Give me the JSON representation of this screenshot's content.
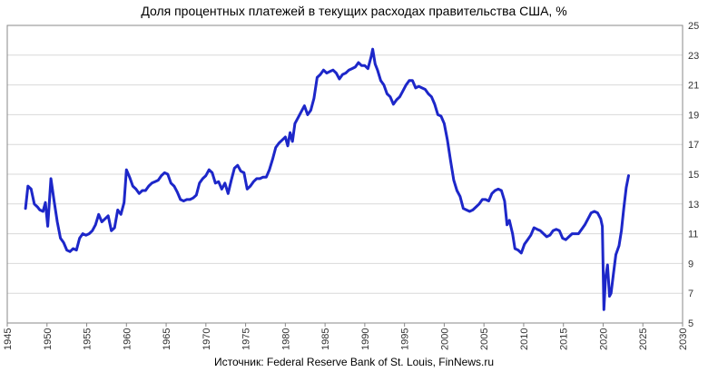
{
  "chart_data": {
    "type": "line",
    "title": "Доля процентных платежей в текущих расходах правительства США, %",
    "source": "Источник: Federal Reserve Bank of St. Louis, FinNews.ru",
    "xlim": [
      1945,
      2030
    ],
    "ylim": [
      5,
      25
    ],
    "x_ticks": [
      "1945",
      "1950",
      "1955",
      "1960",
      "1965",
      "1970",
      "1975",
      "1980",
      "1985",
      "1990",
      "1995",
      "2000",
      "2005",
      "2010",
      "2015",
      "2020",
      "2025",
      "2030"
    ],
    "y_ticks": [
      "5",
      "7",
      "9",
      "11",
      "13",
      "15",
      "17",
      "19",
      "21",
      "23",
      "25"
    ],
    "grid": true,
    "line_color": "#1d27c9",
    "series": [
      {
        "name": "",
        "points": [
          [
            1947.3,
            12.7
          ],
          [
            1947.6,
            14.2
          ],
          [
            1948.0,
            14.0
          ],
          [
            1948.4,
            13.0
          ],
          [
            1948.8,
            12.8
          ],
          [
            1949.1,
            12.6
          ],
          [
            1949.5,
            12.5
          ],
          [
            1949.8,
            13.1
          ],
          [
            1950.1,
            11.5
          ],
          [
            1950.5,
            14.7
          ],
          [
            1950.9,
            13.2
          ],
          [
            1951.3,
            11.8
          ],
          [
            1951.7,
            10.7
          ],
          [
            1952.1,
            10.4
          ],
          [
            1952.5,
            9.9
          ],
          [
            1952.9,
            9.8
          ],
          [
            1953.3,
            10.0
          ],
          [
            1953.7,
            9.9
          ],
          [
            1954.1,
            10.7
          ],
          [
            1954.5,
            11.0
          ],
          [
            1954.9,
            10.9
          ],
          [
            1955.3,
            11.0
          ],
          [
            1955.7,
            11.2
          ],
          [
            1956.1,
            11.6
          ],
          [
            1956.5,
            12.3
          ],
          [
            1956.9,
            11.8
          ],
          [
            1957.3,
            12.0
          ],
          [
            1957.7,
            12.2
          ],
          [
            1958.1,
            11.2
          ],
          [
            1958.5,
            11.4
          ],
          [
            1958.9,
            12.6
          ],
          [
            1959.3,
            12.3
          ],
          [
            1959.7,
            13.1
          ],
          [
            1960.0,
            15.3
          ],
          [
            1960.4,
            14.8
          ],
          [
            1960.8,
            14.2
          ],
          [
            1961.2,
            14.0
          ],
          [
            1961.6,
            13.7
          ],
          [
            1962.0,
            13.9
          ],
          [
            1962.4,
            13.9
          ],
          [
            1962.8,
            14.2
          ],
          [
            1963.2,
            14.4
          ],
          [
            1963.6,
            14.5
          ],
          [
            1964.0,
            14.6
          ],
          [
            1964.4,
            14.9
          ],
          [
            1964.8,
            15.1
          ],
          [
            1965.2,
            15.0
          ],
          [
            1965.6,
            14.4
          ],
          [
            1966.0,
            14.2
          ],
          [
            1966.4,
            13.8
          ],
          [
            1966.8,
            13.3
          ],
          [
            1967.2,
            13.2
          ],
          [
            1967.6,
            13.3
          ],
          [
            1968.0,
            13.3
          ],
          [
            1968.4,
            13.4
          ],
          [
            1968.8,
            13.6
          ],
          [
            1969.2,
            14.4
          ],
          [
            1969.6,
            14.7
          ],
          [
            1970.0,
            14.9
          ],
          [
            1970.4,
            15.3
          ],
          [
            1970.8,
            15.1
          ],
          [
            1971.2,
            14.4
          ],
          [
            1971.6,
            14.5
          ],
          [
            1972.0,
            14.0
          ],
          [
            1972.4,
            14.4
          ],
          [
            1972.8,
            13.7
          ],
          [
            1973.2,
            14.6
          ],
          [
            1973.6,
            15.4
          ],
          [
            1974.0,
            15.6
          ],
          [
            1974.4,
            15.2
          ],
          [
            1974.8,
            15.1
          ],
          [
            1975.2,
            14.0
          ],
          [
            1975.6,
            14.2
          ],
          [
            1976.0,
            14.5
          ],
          [
            1976.4,
            14.7
          ],
          [
            1976.8,
            14.7
          ],
          [
            1977.2,
            14.8
          ],
          [
            1977.6,
            14.8
          ],
          [
            1978.0,
            15.3
          ],
          [
            1978.4,
            16.0
          ],
          [
            1978.8,
            16.8
          ],
          [
            1979.2,
            17.1
          ],
          [
            1979.6,
            17.3
          ],
          [
            1980.0,
            17.5
          ],
          [
            1980.3,
            16.9
          ],
          [
            1980.6,
            17.8
          ],
          [
            1980.9,
            17.2
          ],
          [
            1981.2,
            18.4
          ],
          [
            1981.6,
            18.8
          ],
          [
            1982.0,
            19.2
          ],
          [
            1982.4,
            19.6
          ],
          [
            1982.8,
            19.0
          ],
          [
            1983.2,
            19.3
          ],
          [
            1983.6,
            20.1
          ],
          [
            1984.0,
            21.5
          ],
          [
            1984.4,
            21.7
          ],
          [
            1984.8,
            22.0
          ],
          [
            1985.2,
            21.8
          ],
          [
            1985.6,
            21.9
          ],
          [
            1986.0,
            22.0
          ],
          [
            1986.4,
            21.8
          ],
          [
            1986.8,
            21.4
          ],
          [
            1987.2,
            21.7
          ],
          [
            1987.6,
            21.8
          ],
          [
            1988.0,
            22.0
          ],
          [
            1988.4,
            22.1
          ],
          [
            1988.8,
            22.2
          ],
          [
            1989.2,
            22.5
          ],
          [
            1989.6,
            22.3
          ],
          [
            1990.0,
            22.3
          ],
          [
            1990.4,
            22.1
          ],
          [
            1990.8,
            22.9
          ],
          [
            1991.0,
            23.4
          ],
          [
            1991.3,
            22.4
          ],
          [
            1991.6,
            22.0
          ],
          [
            1992.0,
            21.3
          ],
          [
            1992.4,
            21.0
          ],
          [
            1992.8,
            20.4
          ],
          [
            1993.2,
            20.2
          ],
          [
            1993.6,
            19.7
          ],
          [
            1994.0,
            20.0
          ],
          [
            1994.4,
            20.2
          ],
          [
            1994.8,
            20.6
          ],
          [
            1995.2,
            21.0
          ],
          [
            1995.6,
            21.3
          ],
          [
            1996.0,
            21.3
          ],
          [
            1996.4,
            20.8
          ],
          [
            1996.8,
            20.9
          ],
          [
            1997.2,
            20.8
          ],
          [
            1997.6,
            20.7
          ],
          [
            1998.0,
            20.4
          ],
          [
            1998.4,
            20.2
          ],
          [
            1998.8,
            19.7
          ],
          [
            1999.2,
            19.0
          ],
          [
            1999.6,
            18.9
          ],
          [
            2000.0,
            18.4
          ],
          [
            2000.4,
            17.3
          ],
          [
            2000.8,
            15.9
          ],
          [
            2001.2,
            14.6
          ],
          [
            2001.6,
            13.9
          ],
          [
            2002.0,
            13.5
          ],
          [
            2002.4,
            12.7
          ],
          [
            2002.8,
            12.6
          ],
          [
            2003.2,
            12.5
          ],
          [
            2003.6,
            12.6
          ],
          [
            2004.0,
            12.8
          ],
          [
            2004.4,
            13.0
          ],
          [
            2004.8,
            13.3
          ],
          [
            2005.2,
            13.3
          ],
          [
            2005.6,
            13.2
          ],
          [
            2006.0,
            13.7
          ],
          [
            2006.4,
            13.9
          ],
          [
            2006.8,
            14.0
          ],
          [
            2007.2,
            13.9
          ],
          [
            2007.6,
            13.2
          ],
          [
            2007.9,
            11.6
          ],
          [
            2008.2,
            11.9
          ],
          [
            2008.6,
            11.0
          ],
          [
            2008.9,
            10.0
          ],
          [
            2009.3,
            9.9
          ],
          [
            2009.7,
            9.7
          ],
          [
            2010.1,
            10.3
          ],
          [
            2010.5,
            10.6
          ],
          [
            2010.9,
            10.9
          ],
          [
            2011.3,
            11.4
          ],
          [
            2011.7,
            11.3
          ],
          [
            2012.1,
            11.2
          ],
          [
            2012.5,
            11.0
          ],
          [
            2012.9,
            10.8
          ],
          [
            2013.3,
            10.9
          ],
          [
            2013.7,
            11.2
          ],
          [
            2014.1,
            11.3
          ],
          [
            2014.5,
            11.2
          ],
          [
            2014.9,
            10.7
          ],
          [
            2015.3,
            10.6
          ],
          [
            2015.7,
            10.8
          ],
          [
            2016.1,
            11.0
          ],
          [
            2016.5,
            11.0
          ],
          [
            2016.9,
            11.0
          ],
          [
            2017.3,
            11.3
          ],
          [
            2017.7,
            11.6
          ],
          [
            2018.1,
            12.0
          ],
          [
            2018.5,
            12.4
          ],
          [
            2018.9,
            12.5
          ],
          [
            2019.3,
            12.4
          ],
          [
            2019.7,
            12.0
          ],
          [
            2019.9,
            11.5
          ],
          [
            2020.1,
            5.9
          ],
          [
            2020.3,
            8.0
          ],
          [
            2020.55,
            8.9
          ],
          [
            2020.8,
            6.8
          ],
          [
            2021.0,
            7.0
          ],
          [
            2021.3,
            8.3
          ],
          [
            2021.6,
            9.6
          ],
          [
            2022.0,
            10.2
          ],
          [
            2022.3,
            11.2
          ],
          [
            2022.6,
            12.7
          ],
          [
            2022.9,
            14.1
          ],
          [
            2023.2,
            14.9
          ]
        ]
      }
    ]
  }
}
